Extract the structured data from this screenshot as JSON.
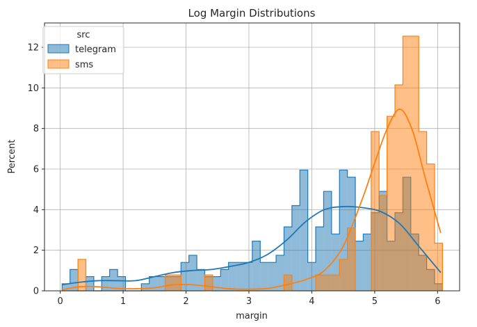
{
  "chart_data": {
    "type": "histogram",
    "title": "Log Margin Distributions",
    "xlabel": "margin",
    "ylabel": "Percent",
    "xlim": [
      -0.25,
      6.35
    ],
    "ylim": [
      0,
      13.2
    ],
    "xticks": [
      0,
      1,
      2,
      3,
      4,
      5,
      6
    ],
    "yticks": [
      0,
      2,
      4,
      6,
      8,
      10,
      12
    ],
    "grid": true,
    "legend": {
      "title": "src",
      "placement": "top-left"
    },
    "bin_edges": [
      0.03,
      0.156,
      0.282,
      0.408,
      0.534,
      0.66,
      0.786,
      0.912,
      1.038,
      1.164,
      1.29,
      1.416,
      1.542,
      1.668,
      1.794,
      1.92,
      2.046,
      2.172,
      2.298,
      2.424,
      2.55,
      2.676,
      2.802,
      2.928,
      3.054,
      3.18,
      3.306,
      3.432,
      3.558,
      3.684,
      3.81,
      3.936,
      4.062,
      4.188,
      4.314,
      4.44,
      4.566,
      4.692,
      4.818,
      4.944,
      5.07,
      5.196,
      5.322,
      5.448,
      5.574,
      5.7,
      5.826,
      5.952,
      6.078
    ],
    "series": [
      {
        "name": "telegram",
        "color": "#1f77b4",
        "fill": "#1f77b4",
        "values": [
          0.35,
          1.05,
          0,
          0.7,
          0,
          0.7,
          1.05,
          0.7,
          0,
          0,
          0.35,
          0.7,
          0.7,
          0.7,
          0.7,
          1.4,
          1.75,
          1.05,
          0.7,
          0.7,
          1.05,
          1.4,
          1.4,
          1.4,
          2.45,
          1.4,
          1.4,
          1.75,
          3.15,
          4.2,
          5.95,
          1.4,
          3.15,
          4.9,
          2.8,
          5.95,
          5.6,
          2.45,
          2.8,
          3.85,
          4.9,
          2.45,
          3.85,
          5.6,
          2.8,
          1.75,
          1.05,
          0.35
        ],
        "kde_x": [
          0.03,
          0.3,
          0.6,
          0.9,
          1.2,
          1.5,
          1.8,
          2.1,
          2.4,
          2.7,
          3.0,
          3.3,
          3.6,
          3.9,
          4.2,
          4.5,
          4.8,
          5.1,
          5.4,
          5.7,
          6.05
        ],
        "kde_y": [
          0.3,
          0.42,
          0.5,
          0.5,
          0.5,
          0.7,
          0.9,
          1.0,
          1.05,
          1.2,
          1.4,
          1.8,
          2.5,
          3.4,
          4.0,
          4.15,
          4.1,
          3.9,
          3.3,
          2.2,
          0.9
        ]
      },
      {
        "name": "sms",
        "color": "#ff7f0e",
        "fill": "#ff7f0e",
        "values": [
          0,
          0,
          1.55,
          0,
          0,
          0,
          0,
          0,
          0,
          0,
          0,
          0,
          0,
          0.78,
          0.78,
          0,
          0,
          0,
          0.78,
          0,
          0,
          0,
          0,
          0,
          0,
          0,
          0,
          0,
          0.78,
          0,
          0,
          0,
          0.78,
          0.78,
          0.78,
          1.55,
          3.1,
          0,
          0,
          7.85,
          4.7,
          8.6,
          10.15,
          12.55,
          12.55,
          7.85,
          6.25,
          2.35
        ],
        "kde_x": [
          0.03,
          0.3,
          0.6,
          0.9,
          1.2,
          1.5,
          1.8,
          2.1,
          2.4,
          2.7,
          3.0,
          3.3,
          3.6,
          3.9,
          4.2,
          4.5,
          4.8,
          5.0,
          5.2,
          5.4,
          5.6,
          5.8,
          6.05
        ],
        "kde_y": [
          0.05,
          0.2,
          0.2,
          0.12,
          0.1,
          0.15,
          0.3,
          0.3,
          0.2,
          0.1,
          0.08,
          0.12,
          0.3,
          0.55,
          1.0,
          2.2,
          4.5,
          6.3,
          8.0,
          8.95,
          7.9,
          5.6,
          2.85
        ]
      }
    ]
  }
}
